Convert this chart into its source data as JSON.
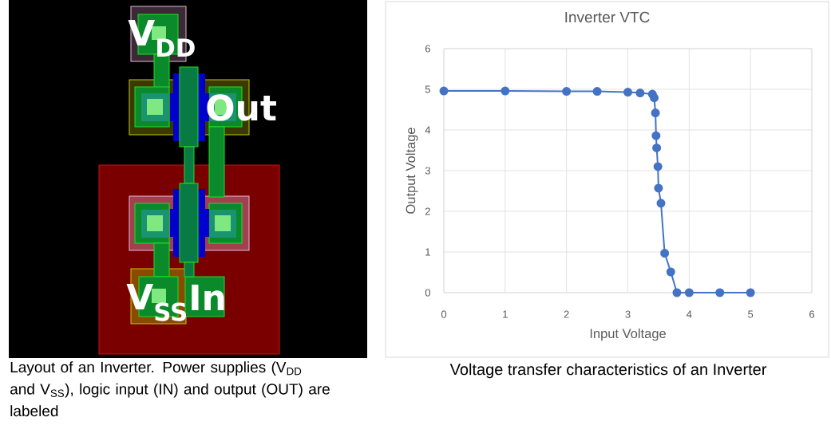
{
  "chart_data": [
    {
      "type": "other",
      "annotations": [
        "V$_{DD}$",
        "Out",
        "V$_{SS}$",
        "In",
        "Layout of an Inverter. Power supplies (V$_{DD}$ and V$_{SS}$), logic input (IN) and output (OUT) are labeled"
      ]
    },
    {
      "type": "line",
      "title": "Inverter VTC",
      "xlabel": "Input Voltage",
      "ylabel": "Output Voltage",
      "x": [
        0,
        1,
        2,
        2.5,
        3,
        3.2,
        3.4,
        3.43,
        3.45,
        3.46,
        3.47,
        3.49,
        3.5,
        3.54,
        3.6,
        3.7,
        3.8,
        4,
        4.5,
        5
      ],
      "values": [
        4.96,
        4.96,
        4.95,
        4.95,
        4.93,
        4.91,
        4.88,
        4.79,
        4.42,
        3.86,
        3.56,
        3.1,
        2.57,
        2.2,
        0.97,
        0.51,
        0,
        0,
        0,
        0
      ],
      "color": "#4472c4",
      "marker": "circle",
      "xlim": [
        0,
        6
      ],
      "ylim": [
        0,
        6
      ],
      "xticks": [
        0,
        1,
        2,
        3,
        4,
        5,
        6
      ],
      "yticks": [
        0,
        1,
        2,
        3,
        4,
        5,
        6
      ],
      "grid": true,
      "annotations": [
        "Voltage transfer characteristics of an Inverter"
      ]
    }
  ]
}
